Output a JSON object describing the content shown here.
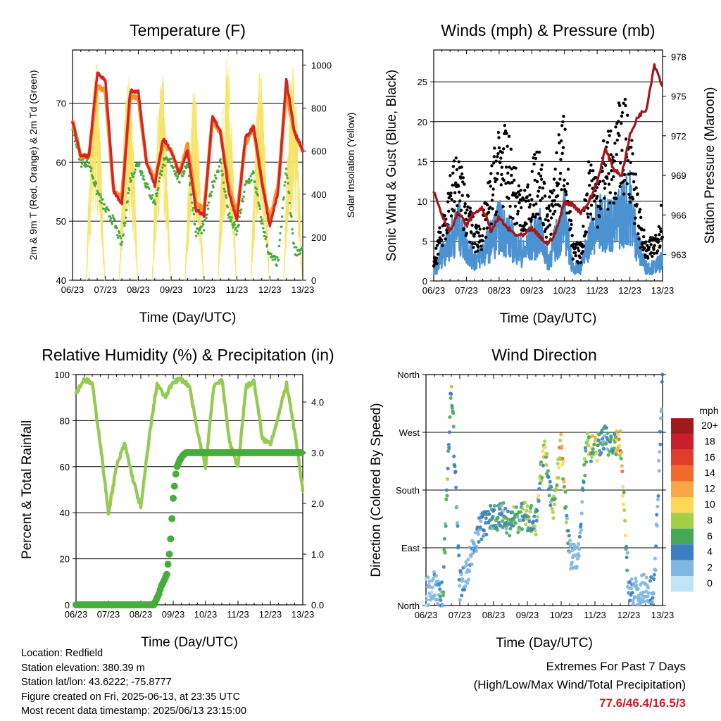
{
  "x_ticks": [
    "06/23",
    "07/23",
    "08/23",
    "09/23",
    "10/23",
    "11/23",
    "12/23",
    "13/23"
  ],
  "x_label": "Time (Day/UTC)",
  "colors": {
    "temp_2m": "#d42424",
    "temp_9m": "#f7932b",
    "dewpoint": "#46ad3c",
    "solar": "#f8e36a",
    "wind": "#4b92d2",
    "gust": "#000000",
    "pressure": "#a3161b",
    "rh": "#95cb52",
    "precip": "#46ad3c"
  },
  "chart_data": [
    {
      "type": "line",
      "title": "Temperature (F)",
      "xlabel": "Time (Day/UTC)",
      "ylabel": "2m & 9m T (Red, Orange) & 2m Td (Green)",
      "y2label": "Solar Insolation (Yellow)",
      "ylim": [
        40,
        79
      ],
      "y2lim": [
        0,
        1070
      ],
      "yticks": [
        40,
        50,
        60,
        70
      ],
      "y2ticks": [
        0,
        200,
        400,
        600,
        800,
        1000
      ],
      "x": [
        0,
        0.25,
        0.5,
        0.75,
        1,
        1.25,
        1.5,
        1.75,
        2,
        2.25,
        2.5,
        2.75,
        3,
        3.25,
        3.5,
        3.75,
        4,
        4.25,
        4.5,
        4.75,
        5,
        5.25,
        5.5,
        5.75,
        6,
        6.25,
        6.5,
        6.75,
        7
      ],
      "series": [
        {
          "name": "2m T",
          "values": [
            67,
            61,
            61,
            75,
            74,
            55,
            53,
            72,
            72,
            60,
            56,
            64,
            62,
            58,
            62,
            52,
            51,
            68,
            65,
            55,
            50,
            64,
            66,
            57,
            49,
            55,
            74,
            65,
            62
          ]
        },
        {
          "name": "9m T",
          "values": [
            67,
            61,
            61,
            73,
            72,
            55,
            54,
            71,
            71,
            60,
            57,
            63,
            62,
            58,
            63,
            53,
            52,
            67,
            65,
            56,
            51,
            63,
            66,
            57,
            50,
            56,
            72,
            65,
            62
          ]
        },
        {
          "name": "2m Td",
          "values": [
            66,
            60,
            60,
            55,
            52,
            50,
            46,
            57,
            60,
            56,
            53,
            60,
            60,
            57,
            60,
            48,
            49,
            56,
            60,
            51,
            48,
            56,
            58,
            50,
            44,
            43,
            59,
            45,
            45
          ]
        },
        {
          "name": "Solar Insolation",
          "peaks": [
            1020,
            980,
            1000,
            890,
            1060,
            980,
            1010
          ]
        }
      ]
    },
    {
      "type": "scatter",
      "title": "Winds (mph) & Pressure (mb)",
      "xlabel": "Time (Day/UTC)",
      "ylabel": "Sonic Wind & Gust (Blue, Black)",
      "y2label": "Station Pressure (Maroon)",
      "ylim": [
        0,
        29
      ],
      "y2lim": [
        961.0,
        978.5
      ],
      "yticks": [
        0,
        5,
        10,
        15,
        20,
        25
      ],
      "y2ticks": [
        963,
        966,
        969,
        972,
        975,
        978
      ],
      "x": [
        0,
        0.25,
        0.5,
        0.75,
        1,
        1.25,
        1.5,
        1.75,
        2,
        2.25,
        2.5,
        2.75,
        3,
        3.25,
        3.5,
        3.75,
        4,
        4.25,
        4.5,
        4.75,
        5,
        5.25,
        5.5,
        5.75,
        6,
        6.25,
        6.5,
        6.75,
        7
      ],
      "series": [
        {
          "name": "Sonic Wind",
          "values": [
            1,
            4,
            6,
            8,
            5,
            3,
            4,
            6,
            8,
            7,
            5,
            4,
            6,
            7,
            3,
            6,
            9,
            2,
            2,
            6,
            8,
            9,
            8,
            10,
            11,
            5,
            2,
            2,
            3
          ]
        },
        {
          "name": "Gust",
          "values": [
            2,
            7,
            12,
            14,
            10,
            6,
            7,
            12,
            17,
            16,
            12,
            9,
            13,
            14,
            8,
            14,
            19,
            4,
            4,
            14,
            12,
            16,
            16,
            20,
            18,
            9,
            4,
            5,
            9
          ]
        },
        {
          "name": "Station Pressure",
          "values": [
            967.8,
            966,
            964.8,
            966.2,
            965.2,
            966.2,
            966.5,
            964.8,
            965.8,
            965,
            964.5,
            964.4,
            965,
            964.3,
            963.8,
            964.8,
            967,
            966.8,
            966.2,
            967,
            968.5,
            971,
            969.5,
            969,
            972,
            973.5,
            974,
            977.4,
            975.8
          ]
        }
      ]
    },
    {
      "type": "line",
      "title": "Relative Humidity (%) & Precipitation (in)",
      "xlabel": "Time (Day/UTC)",
      "ylabel": "Percent & Total Rainfall",
      "ylim": [
        0,
        100
      ],
      "y2lim": [
        0,
        4.54
      ],
      "yticks": [
        0,
        20,
        40,
        60,
        80,
        100
      ],
      "y2ticks": [
        "0.0",
        "1.0",
        "2.0",
        "3.0",
        "4.0"
      ],
      "x": [
        0,
        0.25,
        0.5,
        0.75,
        1,
        1.25,
        1.5,
        1.75,
        2,
        2.25,
        2.5,
        2.75,
        3,
        3.25,
        3.5,
        3.75,
        4,
        4.25,
        4.5,
        4.75,
        5,
        5.25,
        5.5,
        5.75,
        6,
        6.25,
        6.5,
        6.75,
        7
      ],
      "series": [
        {
          "name": "RH",
          "values": [
            92,
            98,
            96,
            70,
            40,
            60,
            70,
            55,
            42,
            72,
            96,
            90,
            97,
            98,
            95,
            75,
            60,
            95,
            98,
            70,
            60,
            95,
            97,
            72,
            70,
            82,
            96,
            75,
            50
          ]
        },
        {
          "name": "Precip",
          "x": [
            0,
            2.4,
            2.55,
            2.65,
            2.7,
            2.8,
            2.9,
            2.95,
            3.0,
            3.05,
            3.1,
            3.2,
            3.3,
            3.4,
            3.6,
            7
          ],
          "values": [
            0,
            0,
            0.2,
            0.4,
            0.45,
            0.6,
            1.1,
            1.6,
            2.1,
            2.4,
            2.7,
            2.85,
            2.95,
            3.0,
            3.0,
            3.0
          ]
        }
      ]
    },
    {
      "type": "scatter",
      "title": "Wind Direction",
      "xlabel": "Time (Day/UTC)",
      "ylabel": "Direction (Colored By Speed)",
      "ylim": [
        0,
        360
      ],
      "yticks": [
        "North",
        "East",
        "South",
        "West",
        "North"
      ],
      "x": [
        0,
        0.25,
        0.5,
        0.75,
        1,
        1.25,
        1.5,
        1.75,
        2,
        2.25,
        2.5,
        2.75,
        3,
        3.25,
        3.5,
        3.75,
        4,
        4.25,
        4.5,
        4.75,
        5,
        5.25,
        5.5,
        5.75,
        6,
        6.25,
        6.5,
        6.75,
        7
      ],
      "series": [
        {
          "name": "Direction",
          "values": [
            20,
            30,
            15,
            350,
            30,
            60,
            110,
            130,
            140,
            140,
            130,
            135,
            140,
            130,
            250,
            150,
            250,
            80,
            70,
            250,
            240,
            260,
            250,
            250,
            30,
            20,
            30,
            20,
            360
          ]
        },
        {
          "name": "Speed",
          "values": [
            1,
            2,
            4,
            6,
            3,
            2,
            3,
            4,
            5,
            5,
            6,
            5,
            6,
            6,
            8,
            5,
            12,
            2,
            2,
            6,
            8,
            4,
            5,
            12,
            3,
            2,
            2,
            3,
            3
          ]
        }
      ],
      "colorbar": {
        "title": "mph",
        "labels": [
          "20+",
          "18",
          "16",
          "14",
          "12",
          "10",
          "8",
          "6",
          "4",
          "2",
          "0"
        ],
        "colors": [
          "#9e1b1e",
          "#c81f2a",
          "#e23c2b",
          "#f26a2e",
          "#fba748",
          "#fcd855",
          "#a6cf49",
          "#48a85a",
          "#3b7fc0",
          "#7fb6e2",
          "#bfe4f7"
        ]
      }
    }
  ],
  "info": {
    "location": "Location: Redfield",
    "elevation": "Station elevation: 380.39 m",
    "latlon": "Station lat/lon: 43.6222; -75.8777",
    "created": "Figure created on Fri, 2025-06-13, at 23:35 UTC",
    "recent": "Most recent data timestamp: 2025/06/13 23:15:00"
  },
  "extremes": {
    "line1": "Extremes For Past 7 Days",
    "line2": "(High/Low/Max Wind/Total Precipitation)",
    "values": "77.6/46.4/16.5/3"
  }
}
